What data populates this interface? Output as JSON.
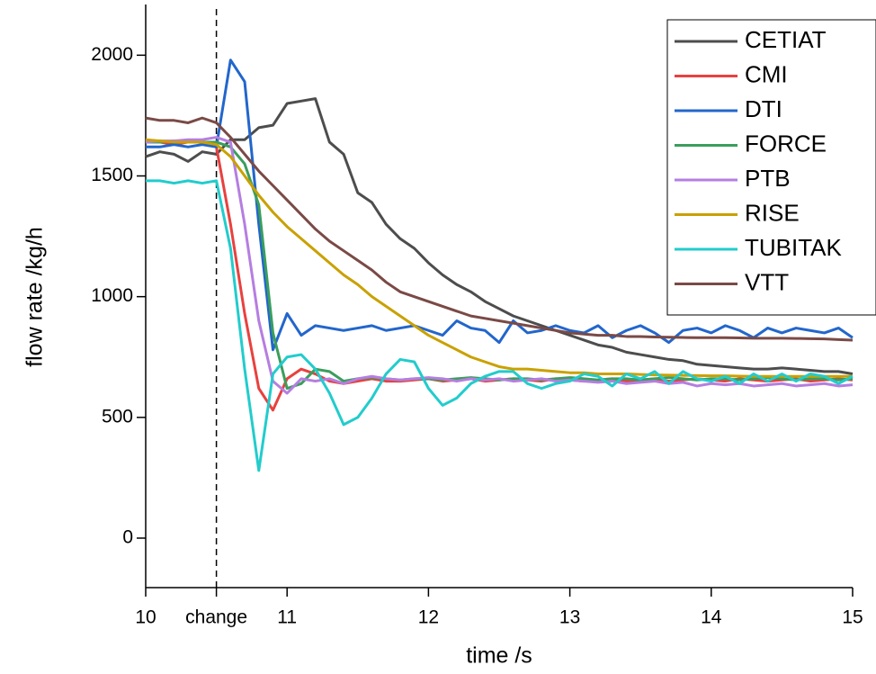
{
  "chart_data": {
    "type": "line",
    "xlabel": "time /s",
    "ylabel": "flow rate /kg/h",
    "xlim": [
      10,
      15
    ],
    "ylim": [
      -205,
      2210
    ],
    "xticks": [
      10,
      {
        "value": 10.5,
        "label": "change"
      },
      11,
      12,
      13,
      14,
      15
    ],
    "yticks": [
      0,
      500,
      1000,
      1500,
      2000
    ],
    "legend": "upper right",
    "x": [
      10,
      10.1,
      10.2,
      10.3,
      10.4,
      10.5,
      10.6,
      10.7,
      10.8,
      10.9,
      11,
      11.1,
      11.2,
      11.3,
      11.4,
      11.5,
      11.6,
      11.7,
      11.8,
      11.9,
      12,
      12.1,
      12.2,
      12.3,
      12.4,
      12.5,
      12.6,
      12.7,
      12.8,
      12.9,
      13,
      13.1,
      13.2,
      13.3,
      13.4,
      13.5,
      13.6,
      13.7,
      13.8,
      13.9,
      14,
      14.1,
      14.2,
      14.3,
      14.4,
      14.5,
      14.6,
      14.7,
      14.8,
      14.9,
      15
    ],
    "series": [
      {
        "name": "CETIAT",
        "color": "#4d4d4d",
        "values": [
          1580,
          1600,
          1590,
          1560,
          1600,
          1590,
          1650,
          1650,
          1700,
          1710,
          1800,
          1810,
          1820,
          1640,
          1590,
          1430,
          1390,
          1300,
          1240,
          1200,
          1140,
          1090,
          1050,
          1020,
          980,
          950,
          920,
          900,
          880,
          860,
          840,
          820,
          800,
          790,
          770,
          760,
          750,
          740,
          735,
          720,
          715,
          710,
          705,
          700,
          700,
          705,
          700,
          695,
          690,
          690,
          680
        ]
      },
      {
        "name": "CMI",
        "color": "#e8413f",
        "values": [
          1640,
          1640,
          1630,
          1640,
          1640,
          1620,
          1300,
          930,
          620,
          530,
          660,
          700,
          680,
          650,
          640,
          650,
          660,
          650,
          650,
          655,
          660,
          650,
          655,
          660,
          650,
          655,
          660,
          655,
          650,
          660,
          655,
          650,
          655,
          660,
          650,
          655,
          660,
          650,
          655,
          660,
          655,
          650,
          660,
          655,
          650,
          655,
          660,
          650,
          655,
          660,
          655
        ]
      },
      {
        "name": "DTI",
        "color": "#2266cc",
        "values": [
          1620,
          1620,
          1630,
          1620,
          1630,
          1620,
          1980,
          1890,
          1300,
          780,
          930,
          840,
          880,
          870,
          860,
          870,
          880,
          860,
          870,
          880,
          860,
          840,
          900,
          870,
          860,
          810,
          900,
          850,
          860,
          880,
          860,
          850,
          880,
          830,
          860,
          880,
          850,
          810,
          860,
          870,
          850,
          880,
          860,
          830,
          870,
          850,
          870,
          860,
          850,
          870,
          830
        ]
      },
      {
        "name": "FORCE",
        "color": "#3a9e5c",
        "values": [
          1640,
          1640,
          1645,
          1640,
          1640,
          1640,
          1620,
          1550,
          1380,
          850,
          620,
          640,
          700,
          690,
          650,
          660,
          665,
          660,
          655,
          660,
          660,
          655,
          660,
          665,
          660,
          655,
          660,
          660,
          655,
          660,
          665,
          660,
          655,
          660,
          660,
          655,
          660,
          665,
          660,
          655,
          660,
          660,
          655,
          660,
          665,
          660,
          655,
          660,
          660,
          655,
          660
        ]
      },
      {
        "name": "PTB",
        "color": "#b57ee0",
        "values": [
          1640,
          1645,
          1645,
          1650,
          1650,
          1660,
          1640,
          1300,
          900,
          650,
          600,
          660,
          650,
          660,
          640,
          660,
          670,
          660,
          655,
          660,
          665,
          660,
          650,
          660,
          655,
          660,
          650,
          655,
          660,
          650,
          655,
          650,
          645,
          650,
          640,
          645,
          650,
          640,
          645,
          630,
          640,
          635,
          640,
          630,
          635,
          640,
          630,
          635,
          640,
          630,
          635
        ]
      },
      {
        "name": "RISE",
        "color": "#c9a100",
        "values": [
          1650,
          1645,
          1640,
          1640,
          1640,
          1630,
          1580,
          1500,
          1420,
          1350,
          1290,
          1240,
          1190,
          1140,
          1090,
          1050,
          1000,
          960,
          920,
          880,
          840,
          810,
          780,
          750,
          730,
          710,
          700,
          700,
          695,
          690,
          685,
          685,
          680,
          680,
          680,
          678,
          676,
          675,
          674,
          673,
          672,
          672,
          671,
          670,
          670,
          670,
          670,
          670,
          670,
          670,
          670
        ]
      },
      {
        "name": "TUBITAK",
        "color": "#22cccc",
        "values": [
          1480,
          1480,
          1470,
          1480,
          1470,
          1480,
          1200,
          700,
          280,
          680,
          750,
          760,
          700,
          600,
          470,
          500,
          580,
          680,
          740,
          730,
          620,
          550,
          580,
          640,
          670,
          690,
          690,
          640,
          620,
          640,
          650,
          680,
          670,
          630,
          680,
          660,
          690,
          640,
          690,
          660,
          650,
          670,
          640,
          680,
          650,
          680,
          650,
          680,
          670,
          640,
          670
        ]
      },
      {
        "name": "VTT",
        "color": "#7a4a46",
        "values": [
          1740,
          1730,
          1730,
          1720,
          1740,
          1720,
          1660,
          1590,
          1520,
          1460,
          1400,
          1340,
          1280,
          1230,
          1190,
          1150,
          1110,
          1060,
          1020,
          1000,
          980,
          960,
          940,
          920,
          910,
          900,
          890,
          880,
          870,
          860,
          850,
          845,
          840,
          840,
          835,
          835,
          833,
          832,
          831,
          830,
          830,
          830,
          829,
          828,
          828,
          828,
          827,
          826,
          825,
          822,
          820
        ]
      }
    ]
  }
}
